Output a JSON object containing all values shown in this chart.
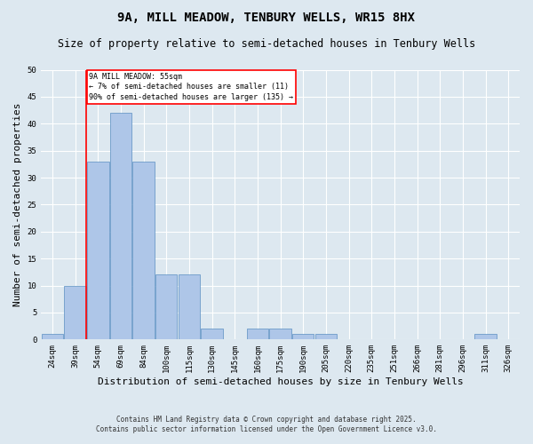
{
  "title1": "9A, MILL MEADOW, TENBURY WELLS, WR15 8HX",
  "title2": "Size of property relative to semi-detached houses in Tenbury Wells",
  "xlabel": "Distribution of semi-detached houses by size in Tenbury Wells",
  "ylabel": "Number of semi-detached properties",
  "categories": [
    "24sqm",
    "39sqm",
    "54sqm",
    "69sqm",
    "84sqm",
    "100sqm",
    "115sqm",
    "130sqm",
    "145sqm",
    "160sqm",
    "175sqm",
    "190sqm",
    "205sqm",
    "220sqm",
    "235sqm",
    "251sqm",
    "266sqm",
    "281sqm",
    "296sqm",
    "311sqm",
    "326sqm"
  ],
  "values": [
    1,
    10,
    33,
    42,
    33,
    12,
    12,
    2,
    0,
    2,
    2,
    1,
    1,
    0,
    0,
    0,
    0,
    0,
    0,
    1,
    0
  ],
  "bar_color": "#aec6e8",
  "bar_edgecolor": "#5a8fc2",
  "red_line_x": 1.5,
  "annotation_title": "9A MILL MEADOW: 55sqm",
  "annotation_line1": "← 7% of semi-detached houses are smaller (11)",
  "annotation_line2": "90% of semi-detached houses are larger (135) →",
  "ylim": [
    0,
    50
  ],
  "yticks": [
    0,
    5,
    10,
    15,
    20,
    25,
    30,
    35,
    40,
    45,
    50
  ],
  "footer1": "Contains HM Land Registry data © Crown copyright and database right 2025.",
  "footer2": "Contains public sector information licensed under the Open Government Licence v3.0.",
  "bg_color": "#dde8f0",
  "plot_bg_color": "#dde8f0",
  "grid_color": "#ffffff",
  "title_fontsize": 10,
  "subtitle_fontsize": 8.5,
  "axis_label_fontsize": 8,
  "tick_fontsize": 6.5,
  "footer_fontsize": 5.5
}
